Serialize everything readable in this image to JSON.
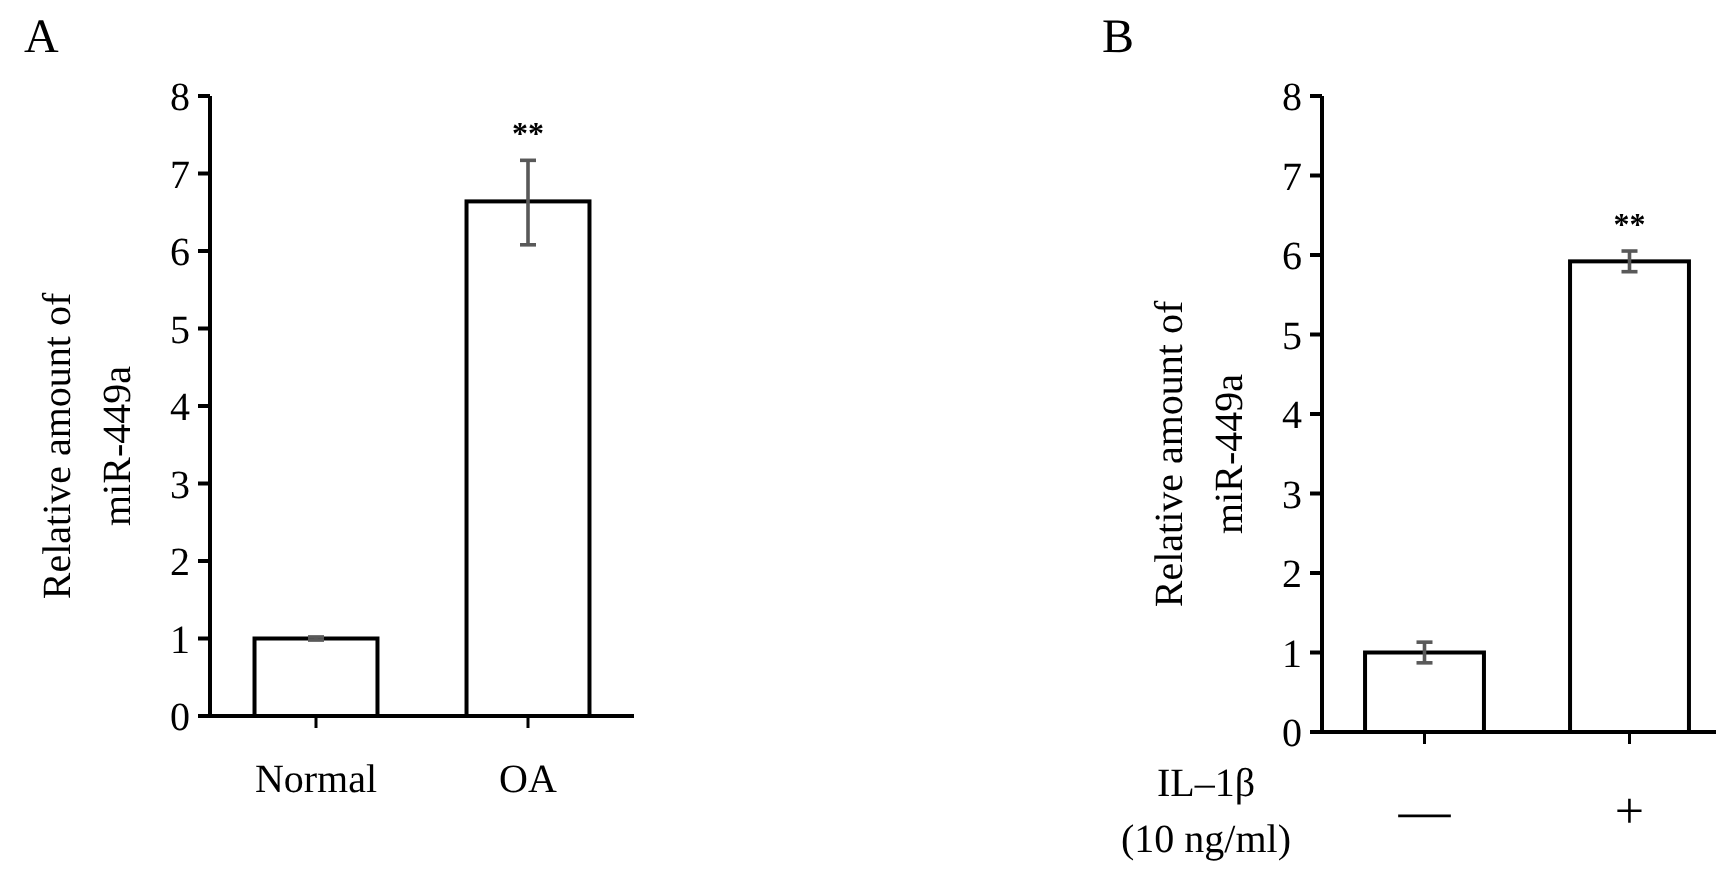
{
  "chart_data": [
    {
      "type": "bar",
      "title": "A",
      "ylabel": "Relative amount of miR-449a",
      "categories": [
        "Normal",
        "OA"
      ],
      "values": [
        1.0,
        6.64
      ],
      "errors": [
        0.02,
        [
          6.08,
          7.17
        ]
      ],
      "color": "#ffffff",
      "ylim": [
        0,
        8
      ],
      "yticks": [
        0,
        1,
        2,
        3,
        4,
        5,
        6,
        7,
        8
      ],
      "grid": false,
      "annotations": [
        {
          "text": "**",
          "x": "OA",
          "y": 7.17
        }
      ]
    },
    {
      "type": "bar",
      "title": "B",
      "ylabel": "Relative amount of miR-449a",
      "xlabel": "IL–1β (10 ng/ml)",
      "categories": [
        "—",
        "+"
      ],
      "values": [
        1.0,
        5.92
      ],
      "errors": [
        0.13,
        0.13
      ],
      "color": "#ffffff",
      "ylim": [
        0,
        8
      ],
      "yticks": [
        0,
        1,
        2,
        3,
        4,
        5,
        6,
        7,
        8
      ],
      "grid": false,
      "annotations": [
        {
          "text": "**",
          "x": "+",
          "y": 6.05
        }
      ]
    }
  ]
}
